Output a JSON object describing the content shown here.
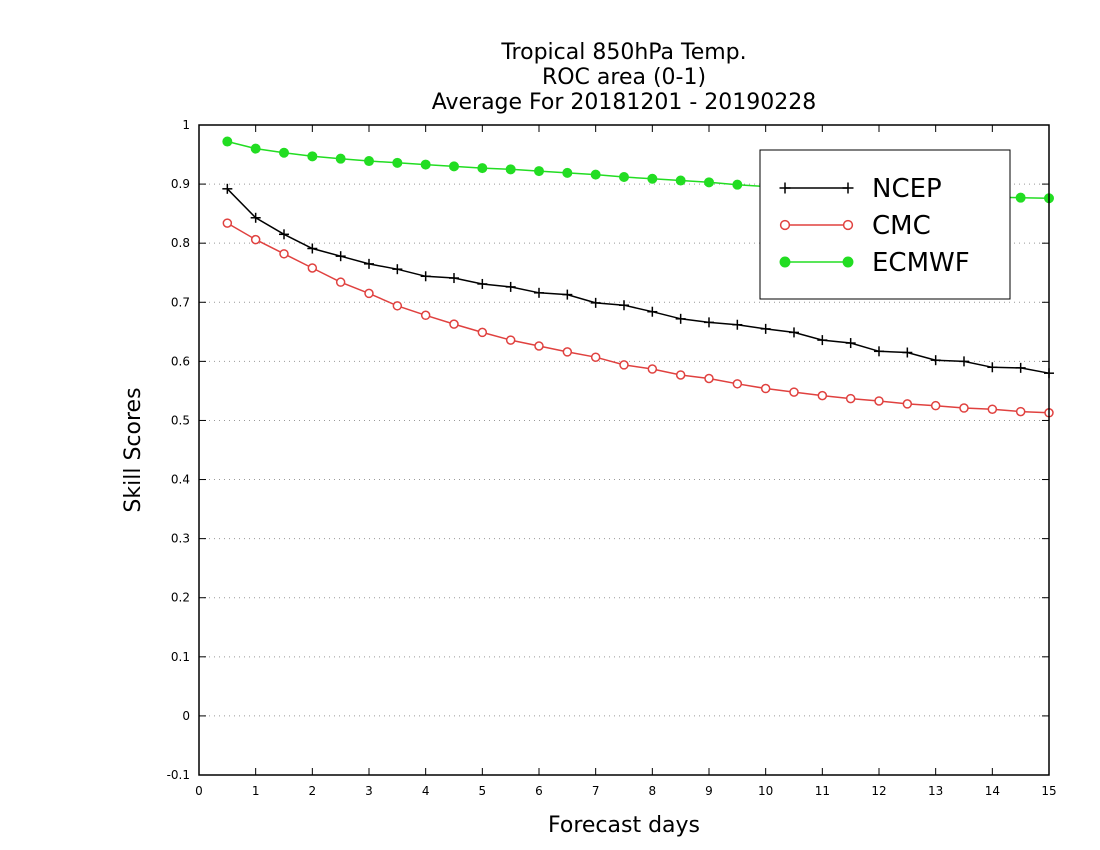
{
  "chart_data": {
    "type": "line",
    "title_lines": [
      "Tropical 850hPa Temp.",
      "ROC area (0-1)",
      "Average For 20181201 - 20190228"
    ],
    "xlabel": "Forecast days",
    "ylabel": "Skill Scores",
    "xlim": [
      0,
      15
    ],
    "ylim": [
      -0.1,
      1
    ],
    "xticks": [
      0,
      1,
      2,
      3,
      4,
      5,
      6,
      7,
      8,
      9,
      10,
      11,
      12,
      13,
      14,
      15
    ],
    "yticks": [
      -0.1,
      0,
      0.1,
      0.2,
      0.3,
      0.4,
      0.5,
      0.6,
      0.7,
      0.8,
      0.9,
      1
    ],
    "ytick_labels": [
      "-0.1",
      "0",
      "0.1",
      "0.2",
      "0.3",
      "0.4",
      "0.5",
      "0.6",
      "0.7",
      "0.8",
      "0.9",
      "1"
    ],
    "grid": "horizontal dotted",
    "legend_placement": "top-right",
    "x": [
      0.5,
      1,
      1.5,
      2,
      2.5,
      3,
      3.5,
      4,
      4.5,
      5,
      5.5,
      6,
      6.5,
      7,
      7.5,
      8,
      8.5,
      9,
      9.5,
      10,
      10.5,
      11,
      11.5,
      12,
      12.5,
      13,
      13.5,
      14,
      14.5,
      15
    ],
    "series": [
      {
        "name": "NCEP",
        "color": "#000000",
        "marker": "plus",
        "values": [
          0.892,
          0.843,
          0.815,
          0.791,
          0.778,
          0.765,
          0.756,
          0.744,
          0.741,
          0.731,
          0.726,
          0.716,
          0.713,
          0.699,
          0.695,
          0.684,
          0.672,
          0.666,
          0.662,
          0.655,
          0.649,
          0.636,
          0.631,
          0.617,
          0.615,
          0.602,
          0.6,
          0.59,
          0.589,
          0.58
        ]
      },
      {
        "name": "CMC",
        "color": "#e0413f",
        "marker": "open-circle",
        "values": [
          0.834,
          0.806,
          0.782,
          0.758,
          0.734,
          0.715,
          0.694,
          0.678,
          0.663,
          0.649,
          0.636,
          0.626,
          0.616,
          0.607,
          0.594,
          0.587,
          0.577,
          0.571,
          0.562,
          0.554,
          0.548,
          0.542,
          0.537,
          0.533,
          0.528,
          0.525,
          0.521,
          0.519,
          0.515,
          0.513
        ]
      },
      {
        "name": "ECMWF",
        "color": "#22dd22",
        "marker": "filled-circle",
        "values": [
          0.972,
          0.96,
          0.953,
          0.947,
          0.943,
          0.939,
          0.936,
          0.933,
          0.93,
          0.927,
          0.925,
          0.922,
          0.919,
          0.916,
          0.912,
          0.909,
          0.906,
          0.903,
          0.899,
          0.896,
          0.893,
          0.89,
          0.887,
          0.885,
          0.883,
          0.881,
          0.879,
          0.878,
          0.877,
          0.876
        ]
      }
    ]
  }
}
